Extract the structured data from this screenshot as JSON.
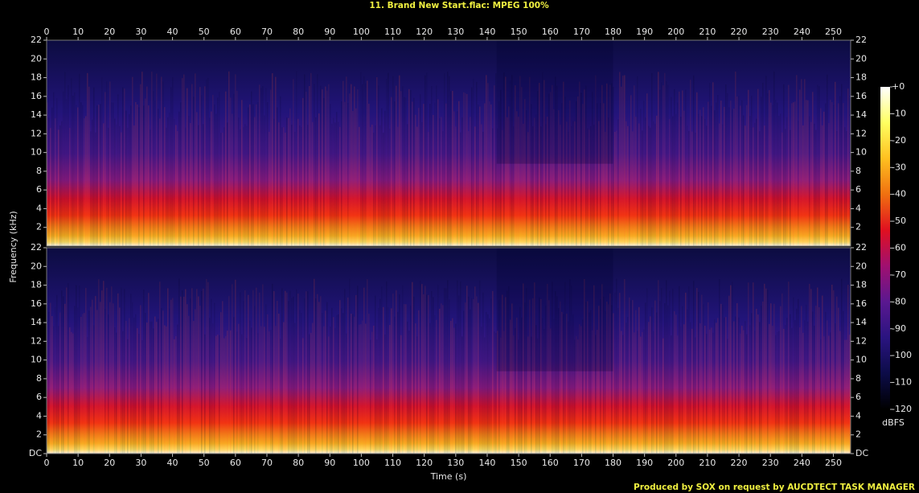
{
  "chart_data": {
    "type": "spectrogram",
    "title": "11. Brand New Start.flac: MPEG 100%",
    "x_label": "Time (s)",
    "y_label": "Frequency (kHz)",
    "colorbar_label": "dBFS",
    "footer": "Produced by SOX on request by AUCDTECT TASK MANAGER",
    "channels": 2,
    "xlim": [
      0,
      255.5
    ],
    "xticks": [
      0,
      10,
      20,
      30,
      40,
      50,
      60,
      70,
      80,
      90,
      100,
      110,
      120,
      130,
      140,
      150,
      160,
      170,
      180,
      190,
      200,
      210,
      220,
      230,
      240,
      250
    ],
    "ylim": [
      0,
      22
    ],
    "yticks": [
      {
        "value": 0,
        "label": "DC"
      },
      2,
      4,
      6,
      8,
      10,
      12,
      14,
      16,
      18,
      20,
      22
    ],
    "clim": [
      -120,
      0
    ],
    "cticks": [
      {
        "value": 0,
        "label": "+0"
      },
      -10,
      -20,
      -30,
      -40,
      -50,
      -60,
      -70,
      -80,
      -90,
      -100,
      -110,
      -120
    ],
    "colormap": [
      "#ffffff",
      "#ffff60",
      "#ffc020",
      "#f07010",
      "#e01020",
      "#a01070",
      "#5a1890",
      "#2a1480",
      "#0c0c48",
      "#000000"
    ]
  }
}
